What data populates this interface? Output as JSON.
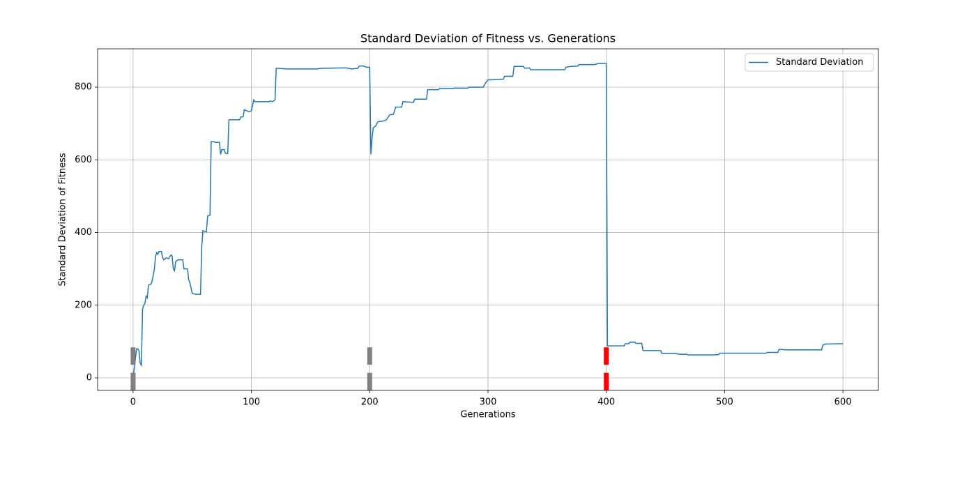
{
  "chart_data": {
    "type": "line",
    "title": "Standard Deviation of Fitness vs. Generations",
    "x_label": "Generations",
    "y_label": "Standard Deviation of Fitness",
    "x": [
      0,
      3,
      4,
      5,
      6,
      7,
      8,
      9,
      10,
      11,
      12,
      13,
      15,
      16,
      18,
      19,
      20,
      21,
      22,
      24,
      25,
      26,
      28,
      30,
      32,
      33,
      34,
      35,
      36,
      38,
      42,
      43,
      46,
      47,
      48,
      50,
      53,
      57,
      58,
      59,
      61,
      62,
      63,
      65,
      66,
      68,
      70,
      73,
      74,
      75,
      77,
      78,
      80,
      81,
      90,
      91,
      93,
      94,
      96,
      98,
      100,
      101,
      102,
      103,
      110,
      115,
      116,
      118,
      120,
      121,
      130,
      155,
      160,
      180,
      185,
      190,
      191,
      195,
      197,
      200,
      201,
      202,
      203,
      205,
      207,
      212,
      214,
      217,
      220,
      222,
      227,
      228,
      237,
      238,
      248,
      249,
      258,
      259,
      270,
      271,
      283,
      284,
      296,
      298,
      300,
      313,
      314,
      321,
      322,
      330,
      331,
      335,
      336,
      365,
      366,
      370,
      376,
      377,
      390,
      393,
      400,
      401,
      415,
      416,
      419,
      420,
      424,
      425,
      430,
      431,
      446,
      447,
      460,
      461,
      468,
      469,
      490,
      495,
      496,
      535,
      536,
      545,
      546,
      550,
      551,
      582,
      583,
      585,
      600
    ],
    "series": [
      {
        "name": "Standard Deviation",
        "color": "#1f77b4",
        "values": [
          0,
          80,
          80,
          75,
          40,
          35,
          190,
          200,
          205,
          225,
          220,
          255,
          258,
          265,
          300,
          335,
          345,
          340,
          348,
          348,
          330,
          325,
          330,
          328,
          338,
          335,
          300,
          295,
          320,
          325,
          325,
          300,
          300,
          270,
          262,
          232,
          230,
          230,
          360,
          405,
          403,
          402,
          445,
          448,
          650,
          650,
          648,
          648,
          615,
          628,
          628,
          618,
          617,
          710,
          710,
          718,
          718,
          738,
          735,
          733,
          735,
          750,
          765,
          760,
          760,
          760,
          762,
          760,
          765,
          852,
          850,
          850,
          852,
          853,
          850,
          852,
          858,
          858,
          855,
          855,
          615,
          660,
          688,
          693,
          705,
          707,
          710,
          724,
          725,
          745,
          745,
          760,
          758,
          767,
          767,
          793,
          793,
          796,
          796,
          797,
          797,
          800,
          800,
          812,
          820,
          822,
          830,
          830,
          857,
          857,
          852,
          853,
          848,
          848,
          855,
          857,
          858,
          862,
          862,
          865,
          865,
          88,
          88,
          94,
          94,
          98,
          98,
          95,
          95,
          75,
          75,
          67,
          67,
          65,
          65,
          63,
          63,
          64,
          68,
          68,
          70,
          70,
          78,
          78,
          77,
          77,
          90,
          93,
          94
        ]
      }
    ],
    "markers": [
      {
        "x": 0,
        "y": 60,
        "color": "#808080"
      },
      {
        "x": 0,
        "y": -10,
        "color": "#808080"
      },
      {
        "x": 200,
        "y": 60,
        "color": "#808080"
      },
      {
        "x": 200,
        "y": -10,
        "color": "#808080"
      },
      {
        "x": 400,
        "y": 60,
        "color": "#ff0000"
      },
      {
        "x": 400,
        "y": -10,
        "color": "#ff0000"
      }
    ],
    "xlim": [
      -30,
      630
    ],
    "ylim": [
      -34.5,
      905.5
    ],
    "xticks": [
      0,
      100,
      200,
      300,
      400,
      500,
      600
    ],
    "yticks": [
      0,
      200,
      400,
      600,
      800
    ],
    "grid": true,
    "legend": "upper right"
  }
}
